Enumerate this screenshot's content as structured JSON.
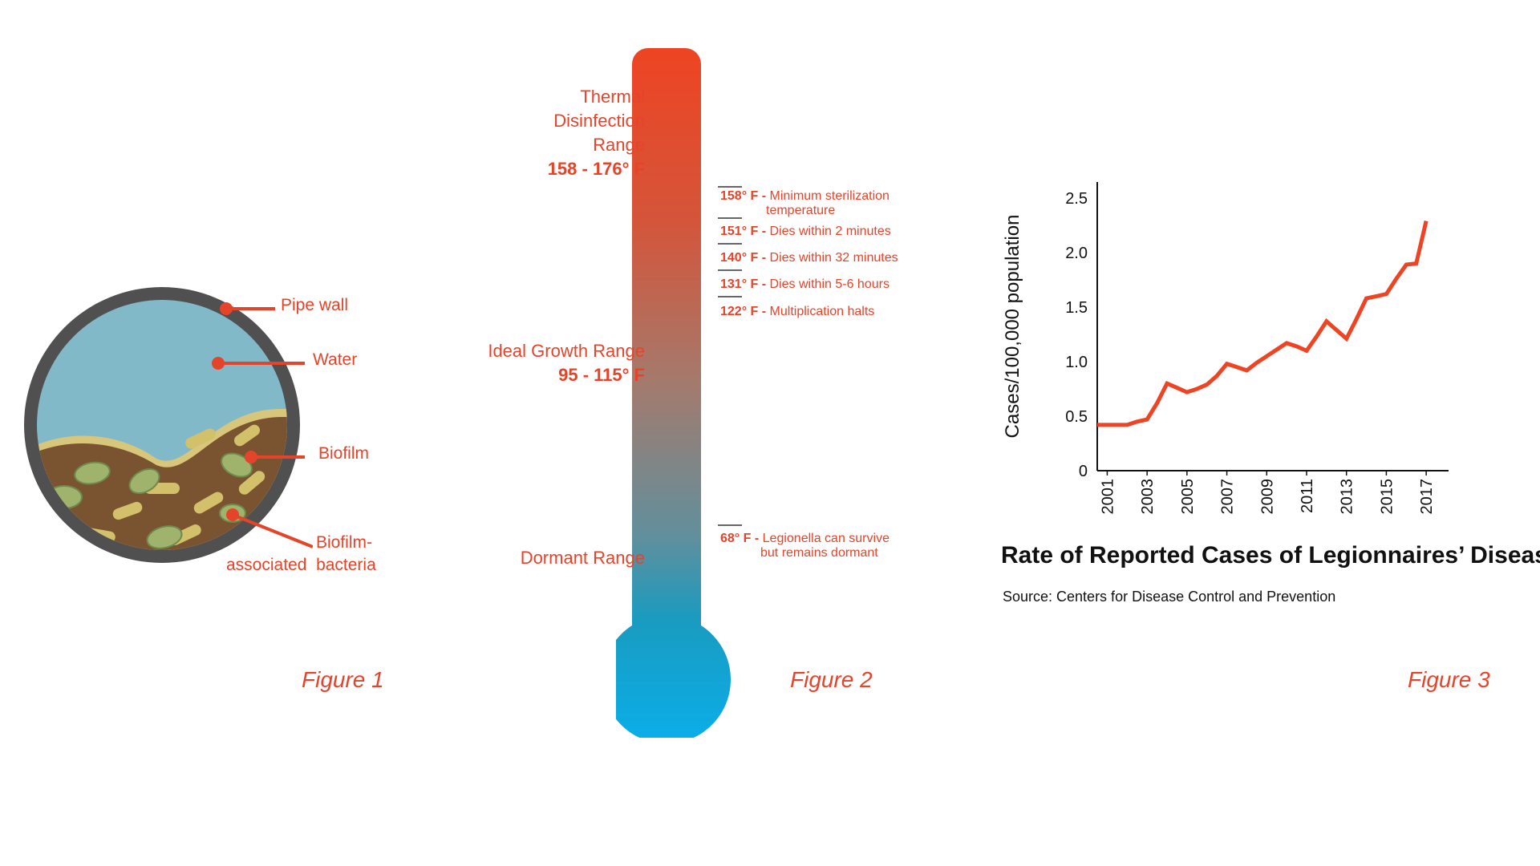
{
  "figure1": {
    "caption": "Figure 1",
    "labels": {
      "pipe_wall": "Pipe wall",
      "water": "Water",
      "biofilm": "Biofilm",
      "bacteria_line1": "Biofilm-",
      "bacteria_line2": "associated  bacteria"
    },
    "colors": {
      "pipe": "#505050",
      "water": "#82b9c9",
      "biofilm": "#7a5330",
      "biofilm_edge": "#d8c77a",
      "bacteria": "#d2c06a",
      "accent": "#e4442a"
    }
  },
  "figure2": {
    "caption": "Figure 2",
    "ranges": {
      "thermal": {
        "line1": "Thermal",
        "line2": "Disinfection",
        "line3": "Range",
        "value": "158 - 176° F"
      },
      "growth": {
        "line1": "Ideal Growth Range",
        "value": "95 - 115° F"
      },
      "dormant": {
        "line1": "Dormant Range"
      }
    },
    "ticks": [
      {
        "temp": "158° F -",
        "text": "Minimum sterilization",
        "text2": "temperature"
      },
      {
        "temp": "151° F -",
        "text": "Dies within 2 minutes"
      },
      {
        "temp": "140° F -",
        "text": "Dies within 32 minutes"
      },
      {
        "temp": "131° F -",
        "text": "Dies within 5-6 hours"
      },
      {
        "temp": "122° F -",
        "text": "Multiplication halts"
      },
      {
        "temp": "68° F -",
        "text": "Legionella can survive",
        "text2": "but remains dormant"
      }
    ],
    "colors": {
      "hot": "#ee4423",
      "cold": "#0aa3d8"
    }
  },
  "figure3": {
    "caption": "Figure 3",
    "title": "Rate of Reported Cases of Legionnaires’ Disease",
    "source": "Source: Centers for Disease Control and Prevention",
    "line_color": "#ee4423"
  },
  "chart_data": {
    "type": "line",
    "title": "Rate of Reported Cases of Legionnaires’ Disease",
    "xlabel": "",
    "ylabel": "Cases/100,000 population",
    "ylim": [
      0,
      2.5
    ],
    "yticks": [
      "0",
      "0.5",
      "1.0",
      "1.5",
      "2.0",
      "2.5"
    ],
    "xticks": [
      "2001",
      "2003",
      "2005",
      "2007",
      "2009",
      "2011",
      "2013",
      "2015",
      "2017"
    ],
    "x": [
      2000.5,
      2001,
      2001.5,
      2002,
      2002.5,
      2003,
      2003.5,
      2004,
      2004.5,
      2005,
      2005.5,
      2006,
      2006.5,
      2007,
      2007.5,
      2008,
      2008.5,
      2009,
      2009.5,
      2010,
      2010.5,
      2011,
      2011.5,
      2012,
      2012.5,
      2013,
      2013.5,
      2014,
      2014.5,
      2015,
      2015.5,
      2016,
      2016.5,
      2017
    ],
    "series": [
      {
        "values": [
          0.42,
          0.42,
          0.42,
          0.42,
          0.45,
          0.47,
          0.62,
          0.8,
          0.76,
          0.72,
          0.75,
          0.79,
          0.87,
          0.98,
          0.95,
          0.92,
          0.99,
          1.05,
          1.11,
          1.17,
          1.14,
          1.1,
          1.23,
          1.37,
          1.29,
          1.21,
          1.39,
          1.58,
          1.6,
          1.62,
          1.76,
          1.89,
          1.9,
          2.29
        ]
      }
    ],
    "grid": false
  }
}
